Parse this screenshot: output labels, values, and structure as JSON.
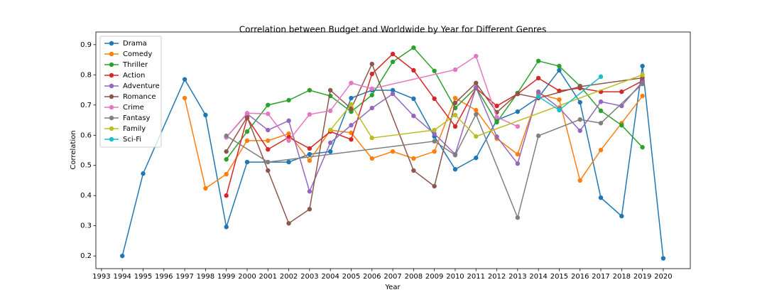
{
  "chart_data": {
    "type": "line",
    "title": "Correlation between Budget and Worldwide by Year for Different Genres",
    "x_label": "Year",
    "y_label": "Correlation",
    "xlim": [
      1992.73,
      2021.3
    ],
    "ylim": [
      0.158,
      0.942
    ],
    "xticks": [
      1993,
      1994,
      1995,
      1996,
      1997,
      1998,
      1999,
      2000,
      2001,
      2002,
      2003,
      2004,
      2005,
      2006,
      2007,
      2008,
      2009,
      2010,
      2011,
      2012,
      2013,
      2014,
      2015,
      2016,
      2017,
      2018,
      2019,
      2020
    ],
    "yticks": [
      0.2,
      0.3,
      0.4,
      0.5,
      0.6,
      0.7,
      0.8,
      0.9
    ],
    "grid": false,
    "legend": "upper left",
    "series": [
      {
        "name": "Drama",
        "color": "#1f77b4",
        "x": [
          1994,
          1995,
          1997,
          1998,
          1999,
          2000,
          2002,
          2003,
          2004,
          2005,
          2006,
          2007,
          2008,
          2009,
          2010,
          2011,
          2012,
          2013,
          2014,
          2015,
          2016,
          2017,
          2018,
          2019,
          2020
        ],
        "values": [
          0.2,
          0.473,
          0.785,
          0.667,
          0.296,
          0.511,
          0.511,
          0.537,
          0.546,
          0.723,
          0.749,
          0.749,
          0.721,
          0.596,
          0.487,
          0.525,
          0.65,
          0.678,
          0.725,
          0.815,
          0.709,
          0.393,
          0.332,
          0.829,
          0.192
        ]
      },
      {
        "name": "Comedy",
        "color": "#ff7f0e",
        "x": [
          1997,
          1998,
          1999,
          2000,
          2001,
          2002,
          2003,
          2004,
          2005,
          2006,
          2007,
          2008,
          2009,
          2010,
          2011,
          2012,
          2013,
          2014,
          2015,
          2016,
          2017,
          2018,
          2019
        ],
        "values": [
          0.723,
          0.424,
          0.471,
          0.582,
          0.582,
          0.605,
          0.516,
          0.617,
          0.608,
          0.523,
          0.546,
          0.523,
          0.546,
          0.723,
          0.683,
          0.589,
          0.537,
          0.737,
          0.718,
          0.45,
          0.551,
          0.64,
          0.73
        ]
      },
      {
        "name": "Thriller",
        "color": "#2ca02c",
        "x": [
          1999,
          2000,
          2001,
          2002,
          2003,
          2004,
          2005,
          2006,
          2007,
          2008,
          2009,
          2010,
          2011,
          2012,
          2013,
          2014,
          2015,
          2016,
          2017,
          2018,
          2019
        ],
        "values": [
          0.52,
          0.612,
          0.7,
          0.716,
          0.749,
          0.73,
          0.678,
          0.733,
          0.843,
          0.89,
          0.813,
          0.69,
          0.758,
          0.643,
          0.74,
          0.846,
          0.829,
          0.763,
          0.681,
          0.633,
          0.56
        ]
      },
      {
        "name": "Action",
        "color": "#d62728",
        "x": [
          1999,
          2000,
          2001,
          2002,
          2003,
          2004,
          2005,
          2006,
          2007,
          2008,
          2009,
          2010,
          2011,
          2012,
          2013,
          2014,
          2015,
          2016,
          2017,
          2018,
          2019
        ],
        "values": [
          0.4,
          0.657,
          0.553,
          0.593,
          0.556,
          0.612,
          0.586,
          0.803,
          0.869,
          0.815,
          0.721,
          0.629,
          0.756,
          0.697,
          0.737,
          0.789,
          0.747,
          0.756,
          0.744,
          0.744,
          0.78
        ]
      },
      {
        "name": "Adventure",
        "color": "#9467bd",
        "x": [
          1999,
          2000,
          2001,
          2002,
          2003,
          2004,
          2005,
          2006,
          2007,
          2008,
          2009,
          2010,
          2011,
          2012,
          2013,
          2014,
          2015,
          2016,
          2017,
          2018,
          2019
        ],
        "values": [
          0.593,
          0.671,
          0.617,
          0.648,
          0.414,
          0.575,
          0.633,
          0.69,
          0.737,
          0.664,
          0.605,
          0.537,
          0.758,
          0.595,
          0.506,
          0.744,
          0.69,
          0.615,
          0.711,
          0.697,
          0.777
        ]
      },
      {
        "name": "Romance",
        "color": "#8c564b",
        "x": [
          1999,
          2000,
          2001,
          2002,
          2003,
          2004,
          2005,
          2006,
          2008,
          2009,
          2010,
          2011,
          2012,
          2013,
          2014,
          2016,
          2019
        ],
        "values": [
          0.546,
          0.66,
          0.483,
          0.308,
          0.355,
          0.749,
          0.688,
          0.836,
          0.483,
          0.431,
          0.707,
          0.773,
          0.676,
          0.737,
          0.723,
          0.761,
          0.79
        ]
      },
      {
        "name": "Crime",
        "color": "#e377c2",
        "x": [
          1999,
          2000,
          2001,
          2002,
          2003,
          2004,
          2005,
          2006,
          2010,
          2011,
          2012,
          2013
        ],
        "values": [
          0.593,
          0.673,
          0.671,
          0.582,
          0.669,
          0.681,
          0.773,
          0.754,
          0.817,
          0.862,
          0.66,
          0.629
        ]
      },
      {
        "name": "Fantasy",
        "color": "#7f7f7f",
        "x": [
          1999,
          2001,
          2009,
          2010,
          2011,
          2013,
          2014,
          2016,
          2017,
          2019
        ],
        "values": [
          0.598,
          0.511,
          0.58,
          0.534,
          0.669,
          0.327,
          0.598,
          0.652,
          0.64,
          0.77
        ]
      },
      {
        "name": "Family",
        "color": "#bcbd22",
        "x": [
          2004,
          2005,
          2006,
          2009,
          2010,
          2011,
          2019
        ],
        "values": [
          0.617,
          0.702,
          0.591,
          0.617,
          0.667,
          0.596,
          0.8
        ]
      },
      {
        "name": "Sci-Fi",
        "color": "#17becf",
        "x": [
          2014,
          2015,
          2017
        ],
        "values": [
          0.728,
          0.683,
          0.794
        ]
      }
    ]
  }
}
